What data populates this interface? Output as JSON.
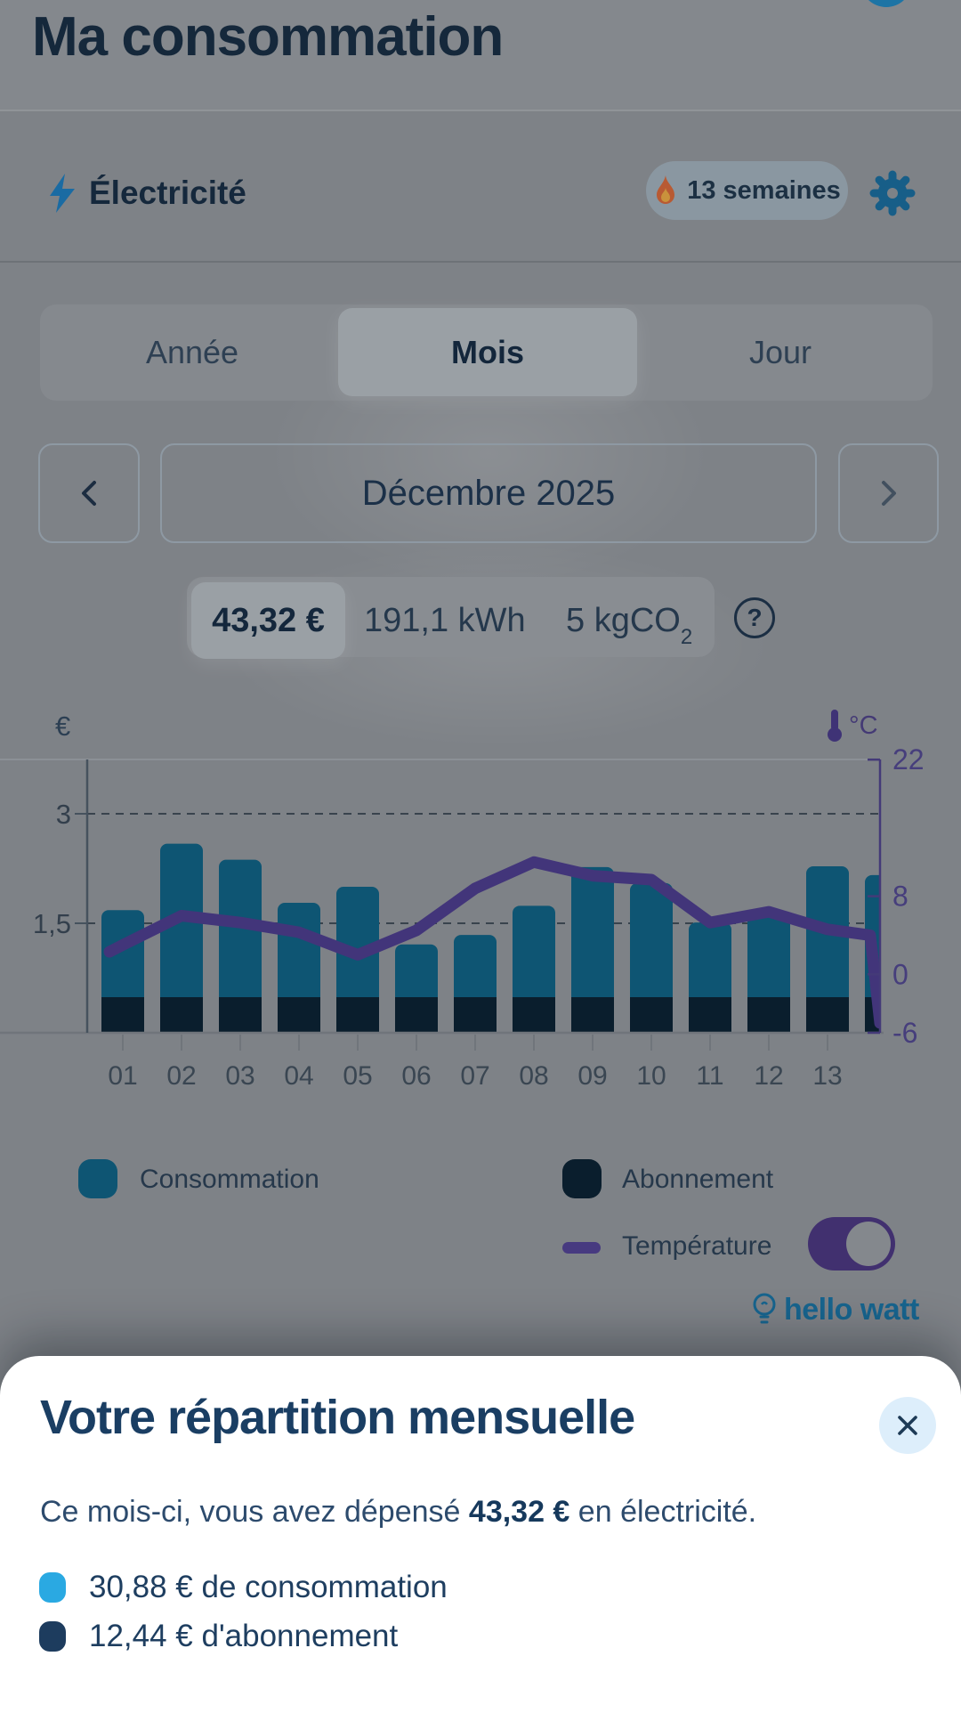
{
  "header": {
    "title": "Ma consommation"
  },
  "energy": {
    "label": "Électricité",
    "weeks_badge": "13 semaines"
  },
  "tabs": {
    "annee": "Année",
    "mois": "Mois",
    "jour": "Jour",
    "selected": "Mois"
  },
  "date_nav": {
    "current": "Décembre 2025"
  },
  "stats": {
    "cost": "43,32 €",
    "energy": "191,1 kWh",
    "co2": "5 kgCO",
    "co2_sub": "2",
    "help": "?"
  },
  "chart_data": {
    "type": "bar+line",
    "title": "",
    "categories": [
      "01",
      "02",
      "03",
      "04",
      "05",
      "06",
      "07",
      "08",
      "09",
      "10",
      "11",
      "12",
      "13",
      ""
    ],
    "series": [
      {
        "name": "Consommation",
        "type": "bar",
        "stack": "cost",
        "unit": "€",
        "color": "#0e5573",
        "values": [
          1.19,
          2.1,
          1.88,
          1.29,
          1.51,
          0.72,
          0.85,
          1.25,
          1.78,
          1.56,
          1.02,
          1.17,
          1.79,
          1.67
        ]
      },
      {
        "name": "Abonnement",
        "type": "bar",
        "stack": "cost",
        "unit": "€",
        "color": "#0a1e2d",
        "values": [
          0.49,
          0.49,
          0.49,
          0.49,
          0.49,
          0.49,
          0.49,
          0.49,
          0.49,
          0.49,
          0.49,
          0.49,
          0.49,
          0.49
        ]
      },
      {
        "name": "Température",
        "type": "line",
        "unit": "°C",
        "color": "#42357a",
        "values": [
          3,
          6,
          5.3,
          4.3,
          2,
          4.5,
          8.8,
          11.5,
          10.1,
          9.7,
          5.3,
          6.4,
          4.6,
          4
        ]
      }
    ],
    "left_axis": {
      "label": "€",
      "tick_labels": [
        "3",
        "1,5"
      ],
      "tick_values": [
        3,
        1.5
      ],
      "max": 3.74
    },
    "right_axis": {
      "label": "°C",
      "tick_labels": [
        "22",
        "8",
        "0",
        "-6"
      ],
      "tick_values": [
        22,
        8,
        0,
        -6
      ],
      "range": [
        -6,
        22
      ]
    },
    "grid": "dashed-horizontal",
    "legend_position": "bottom"
  },
  "legend": {
    "consommation": "Consommation",
    "abonnement": "Abonnement",
    "temperature": "Température",
    "temperature_toggle_on": true
  },
  "brand": {
    "name": "hello watt"
  },
  "sheet": {
    "title": "Votre répartition mensuelle",
    "message_pre": "Ce mois-ci, vous avez dépensé ",
    "message_amount": "43,32 €",
    "message_post": " en électricité.",
    "items": [
      {
        "label": "30,88 € de consommation",
        "color": "#2aa9e2"
      },
      {
        "label": "12,44 € d'abonnement",
        "color": "#1d3c5e"
      }
    ]
  },
  "colors": {
    "accent_blue": "#175e88",
    "bar_consommation": "#0e5573",
    "bar_abonnement": "#0a1e2d",
    "line_temperature": "#42357a",
    "toggle_purple": "#41306f",
    "bullet_consommation": "#2aa9e2",
    "bullet_abonnement": "#1d3c5e",
    "brand_blue": "#17648e",
    "sheet_bg": "#ffffff",
    "scrim_gray": "#7e8287"
  }
}
